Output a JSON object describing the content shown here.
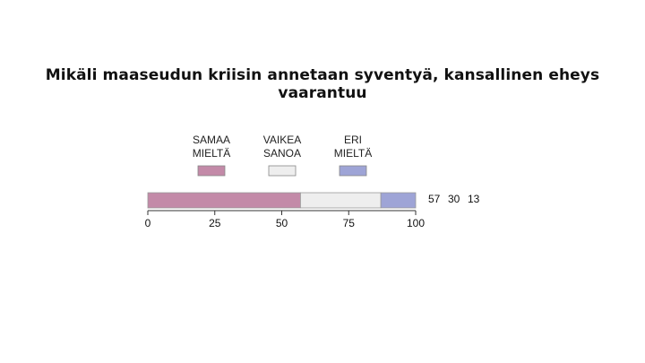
{
  "title": "Mikäli maaseudun kriisin annetaan syventyä, kansallinen eheys vaarantuu",
  "chart_data": {
    "type": "bar",
    "orientation": "horizontal-stacked",
    "xlim": [
      0,
      100
    ],
    "ticks": [
      0,
      25,
      50,
      75,
      100
    ],
    "grid": false,
    "legend_position": "top",
    "series": [
      {
        "name_lines": [
          "SAMAA",
          "MIELTÄ"
        ],
        "value": 57,
        "color": "#c38aa8"
      },
      {
        "name_lines": [
          "VAIKEA",
          "SANOA"
        ],
        "value": 30,
        "color": "#eeeeee"
      },
      {
        "name_lines": [
          "ERI",
          "MIELTÄ"
        ],
        "value": 13,
        "color": "#9ea4d6"
      }
    ]
  }
}
